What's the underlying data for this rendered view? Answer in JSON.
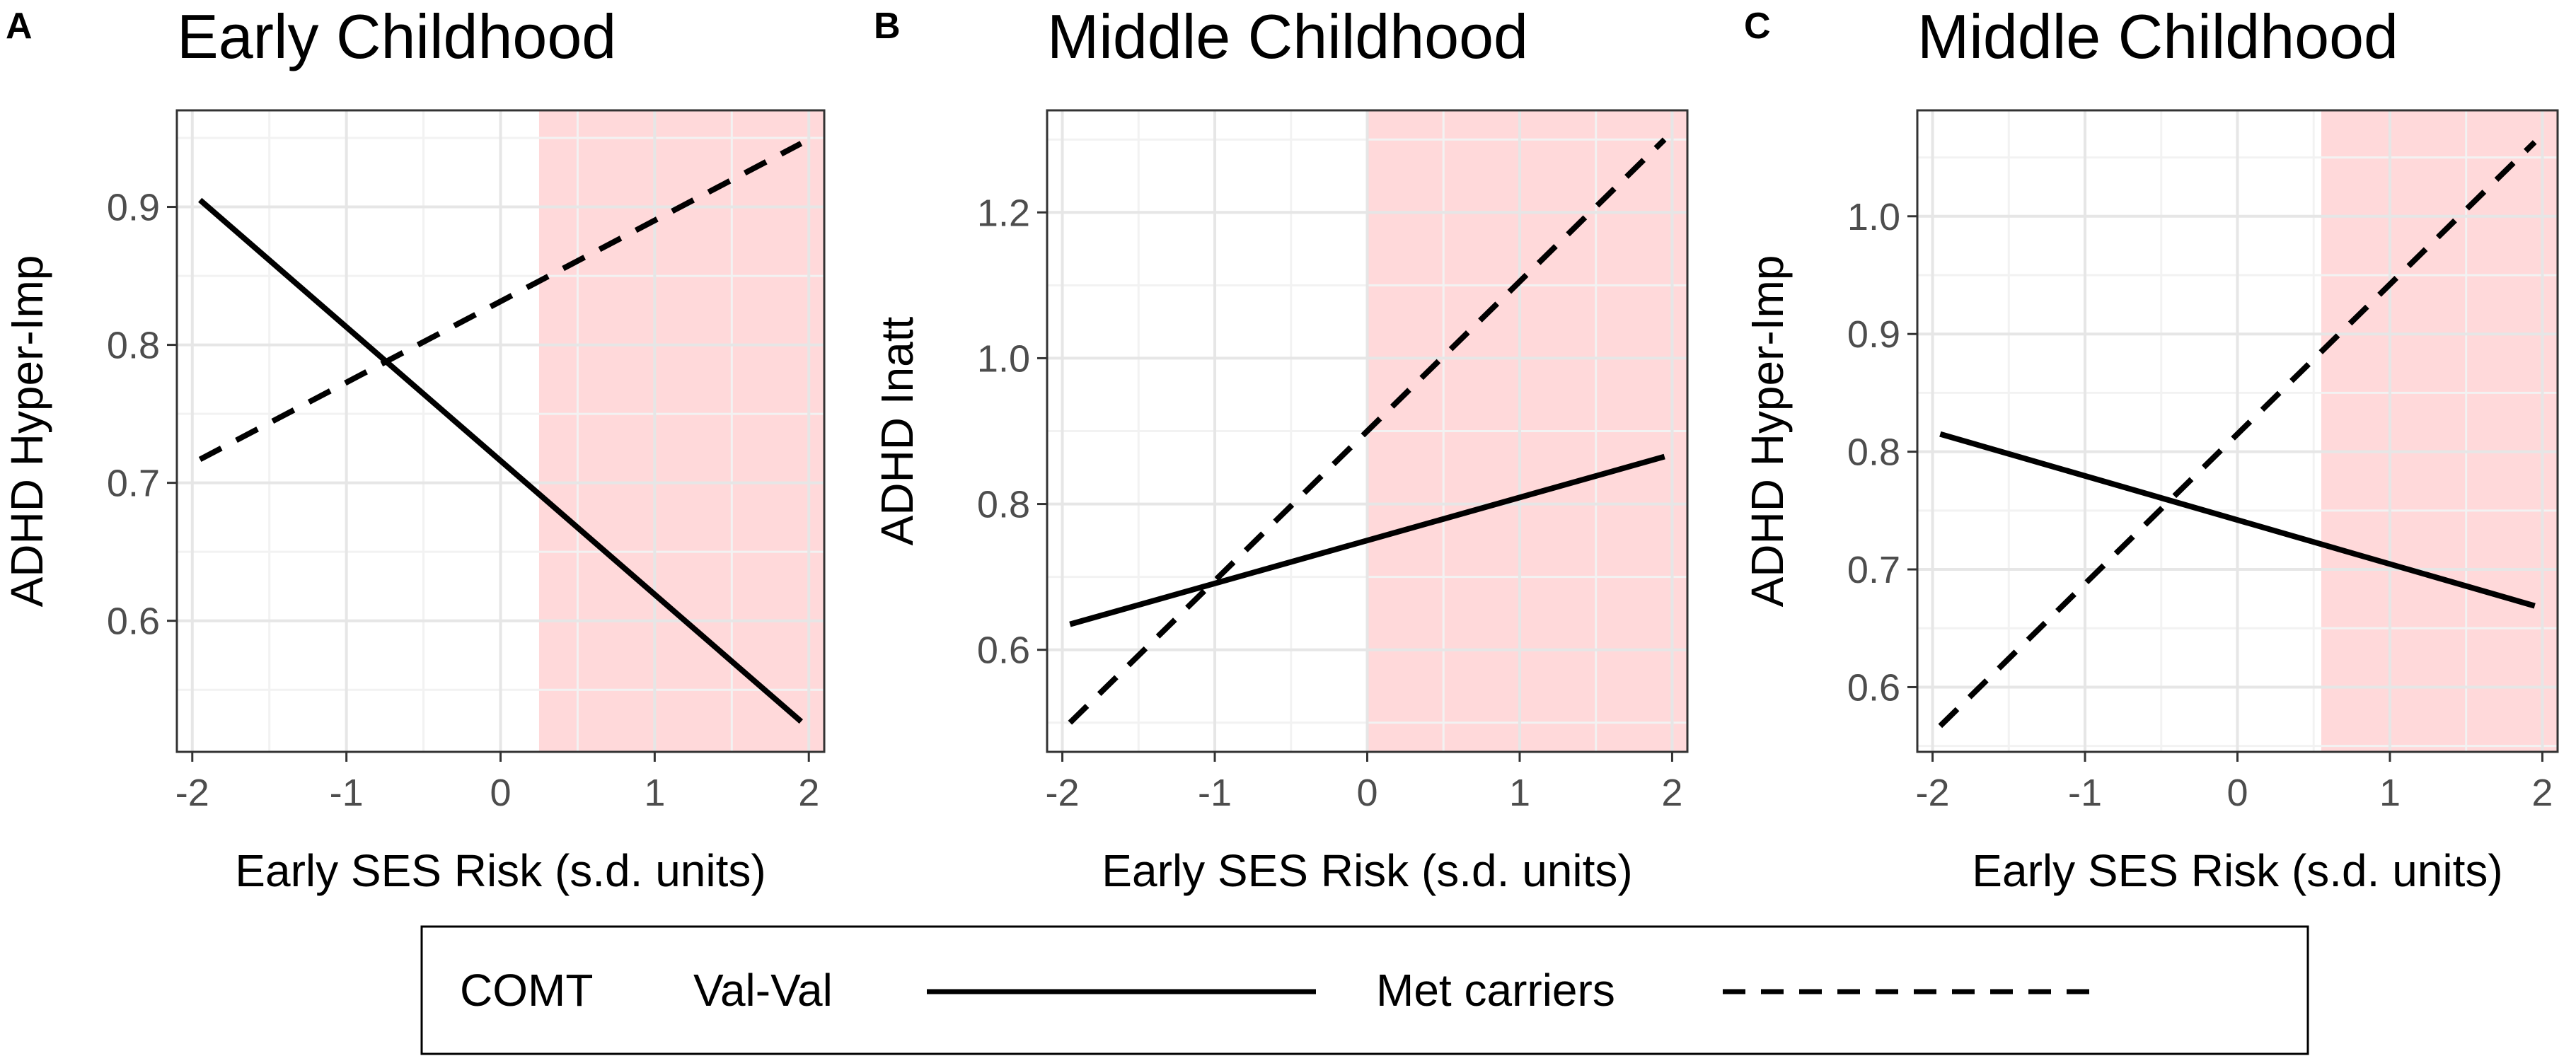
{
  "legend": {
    "title": "COMT",
    "items": [
      {
        "label": "Val-Val",
        "linestyle": "solid"
      },
      {
        "label": "Met carriers",
        "linestyle": "dashed"
      }
    ]
  },
  "colors": {
    "shade": "#ffd9da",
    "line": "#000000",
    "grid_major": "#e6e6e6",
    "grid_minor": "#f2f2f2",
    "axis_text": "#4d4d4d"
  },
  "chart_data": [
    {
      "type": "line",
      "panel_letter": "A",
      "title": "Early Childhood",
      "xlabel": "Early SES Risk (s.d. units)",
      "ylabel": "ADHD Hyper-Imp",
      "xlim": [
        -2.1,
        2.1
      ],
      "ylim": [
        0.505,
        0.97
      ],
      "xticks": [
        -2,
        -1,
        0,
        1,
        2
      ],
      "xtick_labels": [
        "-2",
        "-1",
        "0",
        "1",
        "2"
      ],
      "yticks": [
        0.6,
        0.7,
        0.8,
        0.9
      ],
      "ytick_labels": [
        "0.6",
        "0.7",
        "0.8",
        "0.9"
      ],
      "shaded_region": {
        "from": 0.25,
        "to": 2.1
      },
      "series": [
        {
          "name": "Val-Val",
          "x": [
            -1.95,
            1.95
          ],
          "y": [
            0.905,
            0.527
          ]
        },
        {
          "name": "Met carriers",
          "x": [
            -1.95,
            1.95
          ],
          "y": [
            0.717,
            0.946
          ]
        }
      ]
    },
    {
      "type": "line",
      "panel_letter": "B",
      "title": "Middle Childhood",
      "xlabel": "Early SES Risk (s.d. units)",
      "ylabel": "ADHD Inatt",
      "xlim": [
        -2.1,
        2.1
      ],
      "ylim": [
        0.46,
        1.34
      ],
      "xticks": [
        -2,
        -1,
        0,
        1,
        2
      ],
      "xtick_labels": [
        "-2",
        "-1",
        "0",
        "1",
        "2"
      ],
      "yticks": [
        0.6,
        0.8,
        1.0,
        1.2
      ],
      "ytick_labels": [
        "0.6",
        "0.8",
        "1.0",
        "1.2"
      ],
      "shaded_region": {
        "from": 0.0,
        "to": 2.1
      },
      "series": [
        {
          "name": "Val-Val",
          "x": [
            -1.95,
            1.95
          ],
          "y": [
            0.635,
            0.865
          ]
        },
        {
          "name": "Met carriers",
          "x": [
            -1.95,
            1.95
          ],
          "y": [
            0.5,
            1.3
          ]
        }
      ]
    },
    {
      "type": "line",
      "panel_letter": "C",
      "title": "Middle Childhood",
      "xlabel": "Early SES Risk (s.d. units)",
      "ylabel": "ADHD Hyper-Imp",
      "xlim": [
        -2.1,
        2.1
      ],
      "ylim": [
        0.545,
        1.09
      ],
      "xticks": [
        -2,
        -1,
        0,
        1,
        2
      ],
      "xtick_labels": [
        "-2",
        "-1",
        "0",
        "1",
        "2"
      ],
      "yticks": [
        0.6,
        0.7,
        0.8,
        0.9,
        1.0
      ],
      "ytick_labels": [
        "0.6",
        "0.7",
        "0.8",
        "0.9",
        "1.0"
      ],
      "shaded_region": {
        "from": 0.55,
        "to": 2.1
      },
      "series": [
        {
          "name": "Val-Val",
          "x": [
            -1.95,
            1.95
          ],
          "y": [
            0.815,
            0.669
          ]
        },
        {
          "name": "Met carriers",
          "x": [
            -1.95,
            1.95
          ],
          "y": [
            0.567,
            1.063
          ]
        }
      ]
    }
  ]
}
